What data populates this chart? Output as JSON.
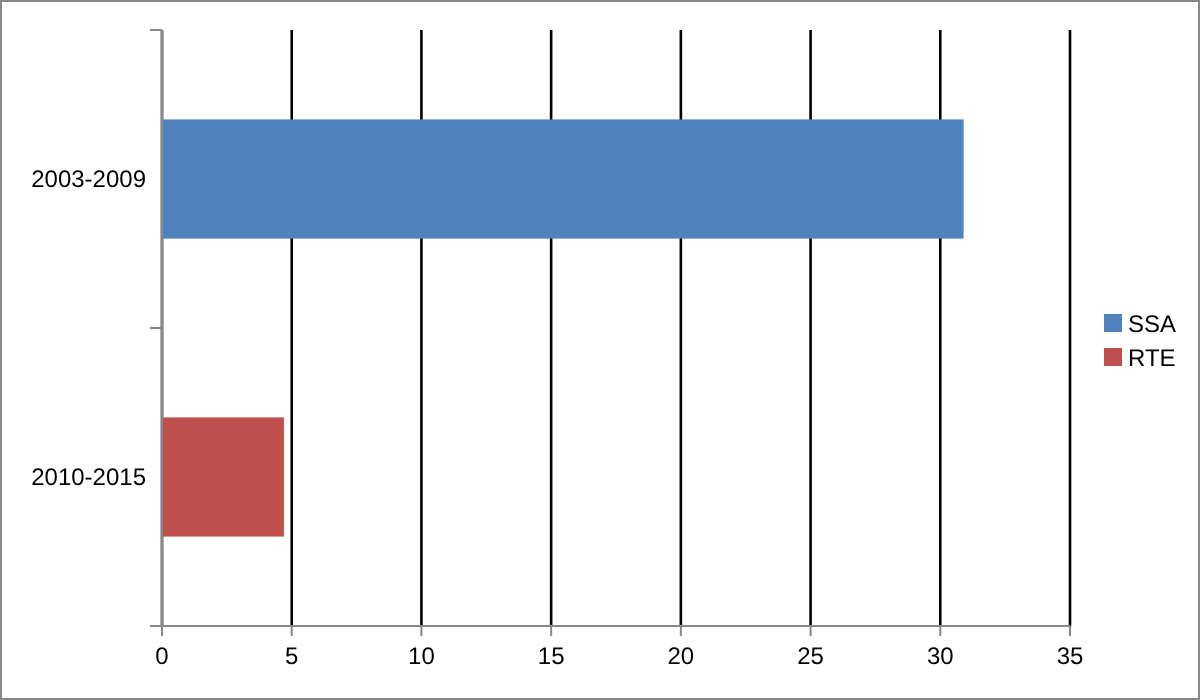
{
  "chart_data": {
    "type": "bar",
    "orientation": "horizontal",
    "stacked": true,
    "categories": [
      "2003-2009",
      "2010-2015"
    ],
    "series": [
      {
        "name": "SSA",
        "color": "#4f81bd",
        "values": [
          30.9,
          null
        ]
      },
      {
        "name": "RTE",
        "color": "#c0504d",
        "values": [
          null,
          4.7
        ]
      }
    ],
    "xlim": [
      0,
      35
    ],
    "xticks": [
      0,
      5,
      10,
      15,
      20,
      25,
      30,
      35
    ],
    "grid": "x",
    "legend": "right"
  }
}
